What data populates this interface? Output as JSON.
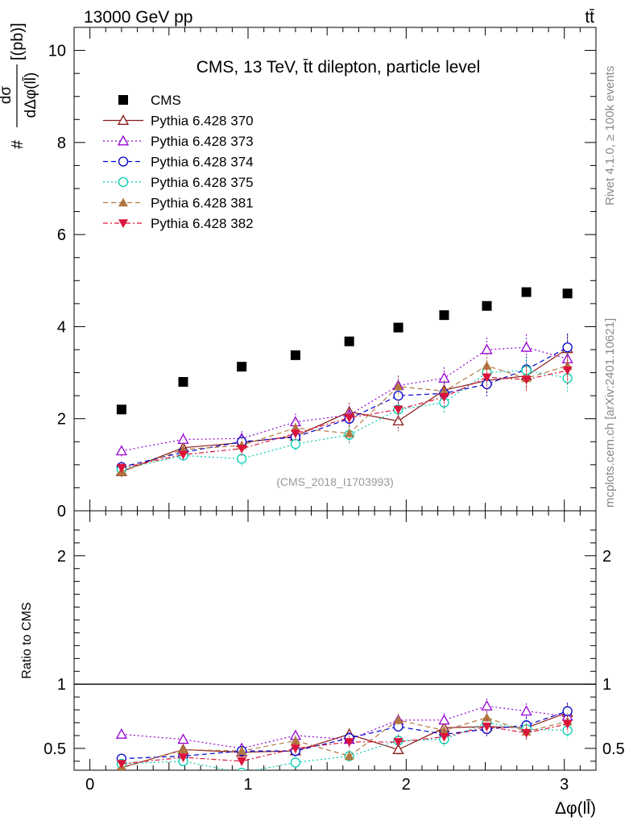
{
  "header": {
    "left_label": "13000 GeV pp",
    "right_label": "tt̄"
  },
  "side_text": {
    "rivet": "Rivet 4.1.0, ≥ 100k events",
    "mcplots": "mcplots.cern.ch [arXiv:2401.10621]"
  },
  "watermark": "(CMS_2018_I1703993)",
  "chart_data": [
    {
      "type": "scatter",
      "panel": "main",
      "title": "CMS, 13 TeV, t̄t dilepton, particle level",
      "ylabel": "# dσ / dΔφ(ll̄) [(pb)]",
      "xlabel": "Δφ(ll̄)",
      "xlim": [
        -0.1,
        3.2
      ],
      "ylim": [
        0,
        10.5
      ],
      "yticks": [
        0,
        2,
        4,
        6,
        8,
        10
      ],
      "xticks": [
        0,
        1,
        2,
        3
      ],
      "x": [
        0.2,
        0.59,
        0.96,
        1.3,
        1.64,
        1.95,
        2.24,
        2.51,
        2.76,
        3.02
      ],
      "series": [
        {
          "name": "CMS",
          "color": "#000000",
          "marker": "square",
          "dash": "none",
          "values": [
            2.2,
            2.8,
            3.13,
            3.38,
            3.68,
            3.98,
            4.25,
            4.45,
            4.75,
            4.72
          ]
        },
        {
          "name": "Pythia 6.428 370",
          "color": "#8b1a1a",
          "marker": "triangle-open",
          "dash": "solid",
          "values": [
            0.85,
            1.37,
            1.48,
            1.62,
            2.15,
            1.95,
            2.62,
            2.83,
            2.93,
            3.52
          ]
        },
        {
          "name": "Pythia 6.428 373",
          "color": "#9400d3",
          "marker": "triangle-open",
          "dash": "2,3",
          "values": [
            1.3,
            1.55,
            1.57,
            1.93,
            2.08,
            2.72,
            2.88,
            3.5,
            3.55,
            3.3
          ]
        },
        {
          "name": "Pythia 6.428 374",
          "color": "#0000cd",
          "marker": "circle-open",
          "dash": "6,4",
          "values": [
            0.95,
            1.27,
            1.5,
            1.6,
            2.0,
            2.5,
            2.55,
            2.75,
            3.07,
            3.55
          ]
        },
        {
          "name": "Pythia 6.428 375",
          "color": "#00cdb0",
          "marker": "circle-open",
          "dash": "2,3",
          "values": [
            0.9,
            1.2,
            1.13,
            1.45,
            1.65,
            2.2,
            2.35,
            3.0,
            3.05,
            2.88
          ]
        },
        {
          "name": "Pythia 6.428 381",
          "color": "#b07840",
          "marker": "triangle-filled",
          "dash": "6,4",
          "values": [
            0.85,
            1.33,
            1.42,
            1.8,
            1.68,
            2.7,
            2.6,
            3.15,
            2.88,
            3.15
          ]
        },
        {
          "name": "Pythia 6.428 382",
          "color": "#dc143c",
          "marker": "triangle-down-filled",
          "dash": "6,3,2,3",
          "values": [
            0.93,
            1.22,
            1.35,
            1.68,
            2.02,
            2.2,
            2.47,
            2.9,
            2.85,
            3.05
          ]
        }
      ]
    },
    {
      "type": "scatter",
      "panel": "ratio",
      "ylabel": "Ratio to CMS",
      "xlabel": "Δφ(ll̄)",
      "xlim": [
        -0.1,
        3.2
      ],
      "ylim": [
        0.33,
        2.35
      ],
      "yticks": [
        0.5,
        1,
        2
      ],
      "xticks": [
        0,
        1,
        2,
        3
      ],
      "x": [
        0.2,
        0.59,
        0.96,
        1.3,
        1.64,
        1.95,
        2.24,
        2.51,
        2.76,
        3.02
      ],
      "series": [
        {
          "name": "Pythia 6.428 370",
          "values": [
            0.35,
            0.49,
            0.47,
            0.48,
            0.61,
            0.49,
            0.66,
            0.67,
            0.66,
            0.78
          ]
        },
        {
          "name": "Pythia 6.428 373",
          "values": [
            0.61,
            0.57,
            0.5,
            0.6,
            0.57,
            0.72,
            0.72,
            0.83,
            0.79,
            0.75
          ]
        },
        {
          "name": "Pythia 6.428 374",
          "values": [
            0.42,
            0.44,
            0.48,
            0.48,
            0.58,
            0.67,
            0.61,
            0.65,
            0.68,
            0.79
          ]
        },
        {
          "name": "Pythia 6.428 375",
          "values": [
            0.38,
            0.4,
            0.31,
            0.39,
            0.44,
            0.56,
            0.57,
            0.7,
            0.65,
            0.64
          ]
        },
        {
          "name": "Pythia 6.428 381",
          "values": [
            0.35,
            0.49,
            0.48,
            0.56,
            0.44,
            0.72,
            0.64,
            0.74,
            0.63,
            0.71
          ]
        },
        {
          "name": "Pythia 6.428 382",
          "values": [
            0.38,
            0.43,
            0.4,
            0.5,
            0.55,
            0.55,
            0.59,
            0.67,
            0.62,
            0.69
          ]
        }
      ]
    }
  ]
}
